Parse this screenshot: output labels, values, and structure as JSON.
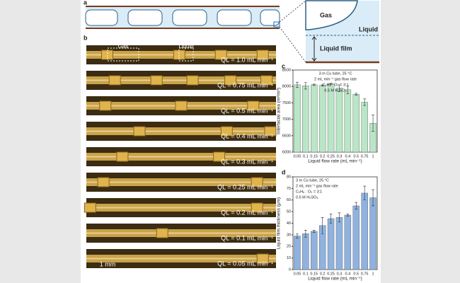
{
  "panel_labels": [
    "a",
    "b",
    "c",
    "d"
  ],
  "panel_a": {
    "gas": "Gas",
    "liquid": "Liquid",
    "liquid_film": "Liquid film"
  },
  "panel_b": {
    "gas": "Gas",
    "liquid": "Liquid",
    "scale_bar": "1 mm",
    "strips": [
      "QL = 1.0 mL min⁻¹",
      "QL = 0.75 mL min⁻¹",
      "QL = 0.5 mL min⁻¹",
      "QL = 0.4 mL min⁻¹",
      "QL = 0.3 mL min⁻¹",
      "QL = 0.25 mL min⁻¹",
      "QL = 0.2 mL min⁻¹",
      "QL = 0.1 mL min⁻¹",
      "QL = 0.05 mL min⁻¹"
    ]
  },
  "chart_data": [
    {
      "type": "bar",
      "annotations": [
        "3 m Cu tube, 25 °C",
        "2 mL min⁻¹ gas flow rate",
        "C₂H₆ : O₂ = 3:1",
        "0.5 M H₂SO₄"
      ],
      "x_label": "Liquid flow rate (mL min⁻¹)",
      "y_label": "Interfacial area (m²/m³)",
      "categories": [
        "0.05",
        "0.1",
        "0.15",
        "0.2",
        "0.25",
        "0.3",
        "0.4",
        "0.5",
        "0.75",
        "1"
      ],
      "values": [
        8050,
        8020,
        8050,
        8030,
        8080,
        7950,
        7900,
        7760,
        7520,
        6880
      ],
      "errors": [
        80,
        100,
        20,
        20,
        20,
        100,
        120,
        30,
        100,
        250
      ],
      "color": "#b9e6c6",
      "ylim": [
        6000,
        8500
      ],
      "yticks": [
        6000,
        6500,
        7000,
        7500,
        8000,
        8500
      ]
    },
    {
      "type": "bar",
      "annotations": [
        "3 m Cu tube, 25 °C",
        "2 mL min⁻¹ gas flow rate",
        "C₂H₆ : O₂ = 3:1",
        "0.5 M H₂SO₄"
      ],
      "x_label": "Liquid flow rate (mL min⁻¹)",
      "y_label": "Liquid film thickness (μm)",
      "categories": [
        "0.05",
        "0.1",
        "0.15",
        "0.2",
        "0.25",
        "0.3",
        "0.4",
        "0.5",
        "0.75",
        "1"
      ],
      "values": [
        29,
        31,
        33,
        38,
        44,
        45,
        47,
        55,
        66,
        62
      ],
      "errors": [
        2,
        3,
        1,
        7,
        4,
        4,
        1,
        3,
        6,
        7
      ],
      "color": "#8fb2df",
      "ylim": [
        0,
        80
      ],
      "yticks": [
        0,
        10,
        20,
        30,
        40,
        50,
        60,
        70,
        80
      ]
    }
  ]
}
